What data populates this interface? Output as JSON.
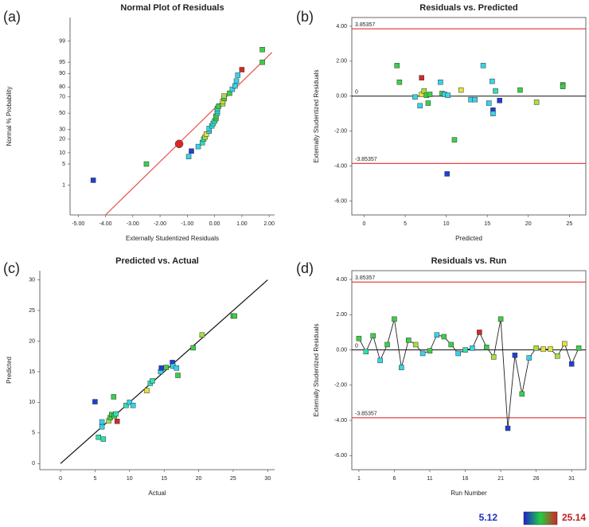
{
  "chart_data": [
    {
      "type": "normal-probability",
      "panel": "(a)",
      "title": "Normal Plot of Residuals",
      "xlabel": "Externally Studentized Residuals",
      "ylabel": "Normal % Probability",
      "xlim": [
        -5.3,
        2.2
      ],
      "ylim": [
        0.05,
        99.9
      ],
      "yscale": "probability",
      "xticks": [
        {
          "value": -5,
          "label": "-5.00"
        },
        {
          "value": -4,
          "label": "-4.00"
        },
        {
          "value": -3,
          "label": "-3.00"
        },
        {
          "value": -2,
          "label": "-2.00"
        },
        {
          "value": -1,
          "label": "-1.00"
        },
        {
          "value": 0,
          "label": "0.00"
        },
        {
          "value": 1,
          "label": "1.00"
        },
        {
          "value": 2,
          "label": "2.00"
        }
      ],
      "yticks": [
        1,
        5,
        10,
        20,
        30,
        50,
        70,
        80,
        90,
        95,
        99
      ],
      "fit_line": {
        "x": [
          -4.0,
          2.1
        ],
        "y": [
          0.05,
          97.5
        ],
        "color": "#e8504a"
      },
      "highlight": 2,
      "series": [
        {
          "x": [
            -4.45,
            -2.5,
            -1.3,
            -0.95,
            -0.85,
            -0.6,
            -0.45,
            -0.4,
            -0.35,
            -0.3,
            -0.2,
            -0.2,
            -0.1,
            -0.05,
            0,
            0.05,
            0.05,
            0.1,
            0.1,
            0.1,
            0.15,
            0.3,
            0.3,
            0.35,
            0.35,
            0.55,
            0.65,
            0.75,
            0.8,
            0.85,
            1.0,
            1.75,
            1.75
          ],
          "values": [
            1.5,
            5,
            16,
            8,
            11,
            14,
            17,
            20,
            22,
            25,
            28,
            31,
            34,
            37,
            40,
            43,
            46,
            50,
            53,
            56,
            59,
            62,
            65,
            68,
            71,
            74,
            78,
            81,
            85,
            89,
            92,
            95,
            98
          ],
          "colors": [
            "#1f3fd6",
            "#3ccf4a",
            "#d62828",
            "#35d4ea",
            "#1f3fd6",
            "#35d4ea",
            "#30e0b0",
            "#30e0b0",
            "#a6e040",
            "#e2e23a",
            "#35d4ea",
            "#35d4ea",
            "#30e0b0",
            "#35d4ea",
            "#30e0b0",
            "#3ccf4a",
            "#3ccf4a",
            "#30e0b0",
            "#35d4ea",
            "#30e0b0",
            "#3ccf4a",
            "#a6e040",
            "#e2e23a",
            "#3ccf4a",
            "#a6e040",
            "#3ccf4a",
            "#35d4ea",
            "#35d4ea",
            "#35d4ea",
            "#35d4ea",
            "#d62828",
            "#3ccf4a",
            "#3ccf4a"
          ]
        }
      ]
    },
    {
      "type": "residual",
      "panel": "(b)",
      "title": "Residuals vs. Predicted",
      "xlabel": "Predicted",
      "ylabel": "Externally Studentized Residuals",
      "xlim": [
        -1.5,
        27
      ],
      "ylim": [
        -6.8,
        4.5
      ],
      "xticks": [
        0,
        5,
        10,
        15,
        20,
        25
      ],
      "yticks": [
        {
          "value": -6,
          "label": "-6.00"
        },
        {
          "value": -4,
          "label": "-4.00"
        },
        {
          "value": -2,
          "label": "-2.00"
        },
        {
          "value": 0,
          "label": "0.00"
        },
        {
          "value": 2,
          "label": "2.00"
        },
        {
          "value": 4,
          "label": "4.00"
        }
      ],
      "limits": [
        3.85357,
        -3.85357
      ],
      "limit_color": "#e03030",
      "center": 0,
      "series": [
        {
          "x": [
            4,
            4.3,
            6.2,
            6.8,
            7,
            7,
            7.3,
            7.6,
            7.8,
            8,
            9.3,
            9.5,
            9.8,
            10.1,
            10.2,
            11,
            11.8,
            13,
            13.5,
            14.5,
            15.2,
            15.6,
            15.7,
            15.7,
            16,
            16.5,
            19,
            21,
            24.2,
            24.2
          ],
          "values": [
            1.75,
            0.8,
            -0.05,
            -0.55,
            1.05,
            0.1,
            0.3,
            0.05,
            -0.4,
            0.1,
            0.8,
            0.15,
            0.1,
            -4.45,
            0.05,
            -2.5,
            0.35,
            -0.2,
            -0.2,
            1.75,
            -0.4,
            0.85,
            -0.8,
            -1.0,
            0.3,
            -0.25,
            0.35,
            -0.35,
            0.65,
            0.55
          ],
          "colors": [
            "#3ccf4a",
            "#3ccf4a",
            "#35d4ea",
            "#35d4ea",
            "#d62828",
            "#e2e23a",
            "#a6e040",
            "#3ccf4a",
            "#3ccf4a",
            "#3ccf4a",
            "#35d4ea",
            "#3ccf4a",
            "#35d4ea",
            "#1f3fd6",
            "#35d4ea",
            "#3ccf4a",
            "#e2e23a",
            "#35d4ea",
            "#35d4ea",
            "#35d4ea",
            "#35d4ea",
            "#35d4ea",
            "#1f3fd6",
            "#35d4ea",
            "#30e0b0",
            "#1f3fd6",
            "#3ccf4a",
            "#a6e040",
            "#3ccf4a",
            "#3ccf4a"
          ]
        }
      ]
    },
    {
      "type": "scatter",
      "panel": "(c)",
      "title": "Predicted vs. Actual",
      "xlabel": "Actual",
      "ylabel": "Predicted",
      "xlim": [
        -3,
        31
      ],
      "ylim": [
        -1,
        31.5
      ],
      "xticks": [
        0,
        5,
        10,
        15,
        20,
        25,
        30
      ],
      "yticks": [
        0,
        5,
        10,
        15,
        20,
        25,
        30
      ],
      "fit_line": {
        "x": [
          0,
          30
        ],
        "y": [
          0,
          30
        ],
        "color": "#111111"
      },
      "series": [
        {
          "x": [
            5,
            5.5,
            6,
            6.2,
            6,
            7,
            7.2,
            7.4,
            7.8,
            7.7,
            8,
            8.2,
            9.5,
            10,
            10.5,
            12.5,
            13,
            13.3,
            14.5,
            14.6,
            15.3,
            16.2,
            16.3,
            16.8,
            17,
            19.2,
            20.5,
            25,
            25.2
          ],
          "values": [
            10.1,
            4.3,
            6.8,
            4,
            6,
            7,
            7.5,
            8,
            7.8,
            10.9,
            8.1,
            6.9,
            9.5,
            10,
            9.5,
            11.9,
            13.1,
            13.5,
            15,
            15.6,
            15.7,
            16.5,
            15.9,
            15.6,
            14.4,
            18.9,
            21,
            24.1,
            24.1
          ],
          "colors": [
            "#1f3fd6",
            "#30e0b0",
            "#35d4ea",
            "#30e0b0",
            "#35d4ea",
            "#a6e040",
            "#3ccf4a",
            "#3ccf4a",
            "#3ccf4a",
            "#3ccf4a",
            "#30e0b0",
            "#d62828",
            "#30e0b0",
            "#35d4ea",
            "#35d4ea",
            "#e2e23a",
            "#30e0b0",
            "#30e0b0",
            "#35d4ea",
            "#1f3fd6",
            "#3ccf4a",
            "#1f3fd6",
            "#35d4ea",
            "#35d4ea",
            "#3ccf4a",
            "#3ccf4a",
            "#a6e040",
            "#3ccf4a",
            "#3ccf4a"
          ]
        }
      ]
    },
    {
      "type": "residual",
      "panel": "(d)",
      "title": "Residuals vs. Run",
      "xlabel": "Run Number",
      "ylabel": "Externally Studentized Residuals",
      "xlim": [
        0,
        33
      ],
      "ylim": [
        -6.8,
        4.5
      ],
      "xticks": [
        1,
        6,
        11,
        16,
        21,
        26,
        31
      ],
      "yticks": [
        {
          "value": -6,
          "label": "-6.00"
        },
        {
          "value": -4,
          "label": "-4.00"
        },
        {
          "value": -2,
          "label": "-2.00"
        },
        {
          "value": 0,
          "label": "0.00"
        },
        {
          "value": 2,
          "label": "2.00"
        },
        {
          "value": 4,
          "label": "4.00"
        }
      ],
      "limits": [
        3.85357,
        -3.85357
      ],
      "limit_color": "#e03030",
      "center": 0,
      "connect": true,
      "series": [
        {
          "x": [
            1,
            2,
            3,
            4,
            5,
            6,
            7,
            8,
            9,
            10,
            11,
            12,
            13,
            14,
            15,
            16,
            17,
            18,
            19,
            20,
            21,
            22,
            23,
            24,
            25,
            26,
            27,
            28,
            29,
            30,
            31,
            32
          ],
          "values": [
            0.65,
            -0.1,
            0.8,
            -0.6,
            0.3,
            1.75,
            -1.0,
            0.55,
            0.3,
            -0.2,
            -0.05,
            0.85,
            0.75,
            0.3,
            -0.2,
            0.0,
            0.1,
            1.0,
            0.15,
            -0.4,
            1.75,
            -4.45,
            -0.3,
            -2.5,
            -0.45,
            0.1,
            0.05,
            0.05,
            -0.35,
            0.35,
            -0.8,
            0.1
          ],
          "colors": [
            "#3ccf4a",
            "#30e0b0",
            "#3ccf4a",
            "#35d4ea",
            "#3ccf4a",
            "#3ccf4a",
            "#35d4ea",
            "#3ccf4a",
            "#a6e040",
            "#35d4ea",
            "#3ccf4a",
            "#35d4ea",
            "#3ccf4a",
            "#3ccf4a",
            "#35d4ea",
            "#30e0b0",
            "#35d4ea",
            "#d62828",
            "#3ccf4a",
            "#a6e040",
            "#3ccf4a",
            "#1f3fd6",
            "#1f3fd6",
            "#3ccf4a",
            "#35d4ea",
            "#a6e040",
            "#e2e23a",
            "#e2e23a",
            "#a6e040",
            "#e2e23a",
            "#1f3fd6",
            "#3ccf4a"
          ]
        }
      ]
    }
  ],
  "colorbar": {
    "min": 5.12,
    "max": 25.14,
    "colors": [
      "#1f1fd0",
      "#20d040",
      "#d82020"
    ]
  }
}
